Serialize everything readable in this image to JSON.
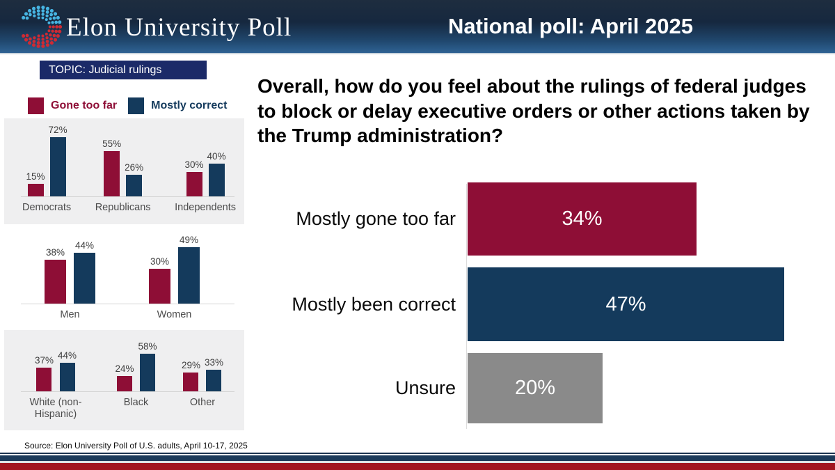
{
  "header": {
    "brand": "Elon University Poll",
    "title": "National poll: April 2025"
  },
  "topic_banner": "TOPIC: Judicial rulings",
  "legend": [
    {
      "label": "Gone too far",
      "color": "#8e0e36"
    },
    {
      "label": "Mostly correct",
      "color": "#143a5c"
    }
  ],
  "question": "Overall, how do you feel about the rulings of federal judges to block or delay executive orders or other actions taken by the Trump administration?",
  "source": "Source: Elon University Poll of U.S. adults, April 10-17, 2025",
  "colors": {
    "gone_too_far_maroon": "#8e0e36",
    "mostly_correct_navy": "#143a5c",
    "unsure_gray": "#8a8a8a",
    "topic_banner_navy": "#1b2a68",
    "footer_red": "#a11420",
    "footer_navy": "#1c3a5a"
  },
  "chart_data": [
    {
      "type": "bar",
      "unit": "%",
      "categories": [
        "Democrats",
        "Republicans",
        "Independents"
      ],
      "series": [
        {
          "name": "Gone too far",
          "values": [
            15,
            55,
            30
          ]
        },
        {
          "name": "Mostly correct",
          "values": [
            72,
            26,
            40
          ]
        }
      ]
    },
    {
      "type": "bar",
      "unit": "%",
      "categories": [
        "Men",
        "Women"
      ],
      "series": [
        {
          "name": "Gone too far",
          "values": [
            38,
            30
          ]
        },
        {
          "name": "Mostly correct",
          "values": [
            44,
            49
          ]
        }
      ]
    },
    {
      "type": "bar",
      "unit": "%",
      "categories": [
        "White (non-Hispanic)",
        "Black",
        "Other"
      ],
      "series": [
        {
          "name": "Gone too far",
          "values": [
            37,
            24,
            29
          ]
        },
        {
          "name": "Mostly correct",
          "values": [
            44,
            58,
            33
          ]
        }
      ]
    },
    {
      "type": "bar",
      "orientation": "horizontal",
      "unit": "%",
      "categories": [
        "Mostly gone too far",
        "Mostly been correct",
        "Unsure"
      ],
      "values": [
        34,
        47,
        20
      ],
      "bar_colors": [
        "#8e0e36",
        "#143a5c",
        "#8a8a8a"
      ],
      "value_label_color": "#ffffff"
    }
  ]
}
